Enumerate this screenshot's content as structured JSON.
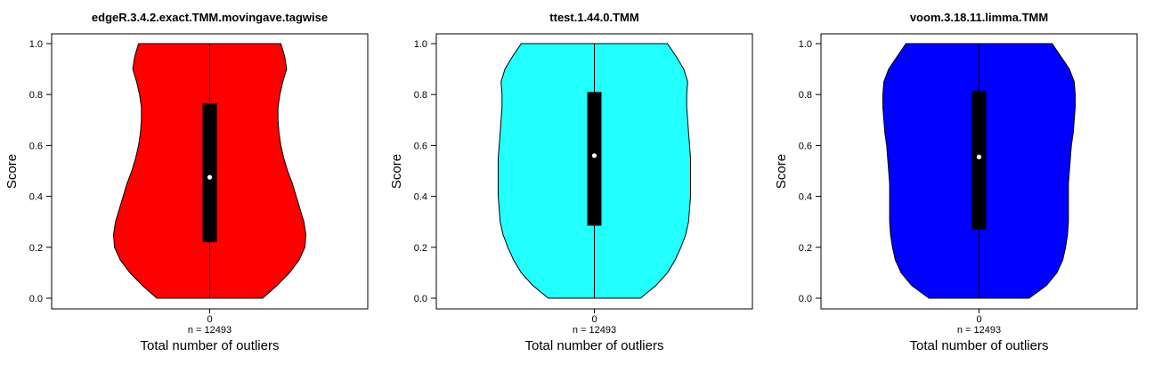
{
  "chart_data": [
    {
      "type": "violin",
      "title": "edgeR.3.4.2.exact.TMM.movingave.tagwise",
      "xlabel": "Total number of outliers",
      "ylabel": "Score",
      "ylim": [
        0,
        1
      ],
      "yticks": [
        "0.0",
        "0.2",
        "0.4",
        "0.6",
        "0.8",
        "1.0"
      ],
      "categories": [
        "0"
      ],
      "n_label": "n = 12493",
      "fill": "#ff0000",
      "box": {
        "q1": 0.22,
        "median": 0.475,
        "q3": 0.765
      },
      "profile": [
        [
          0.0,
          0.55
        ],
        [
          0.05,
          0.7
        ],
        [
          0.1,
          0.83
        ],
        [
          0.15,
          0.93
        ],
        [
          0.2,
          0.99
        ],
        [
          0.25,
          1.0
        ],
        [
          0.3,
          0.98
        ],
        [
          0.35,
          0.94
        ],
        [
          0.4,
          0.9
        ],
        [
          0.45,
          0.86
        ],
        [
          0.5,
          0.81
        ],
        [
          0.55,
          0.77
        ],
        [
          0.6,
          0.74
        ],
        [
          0.65,
          0.72
        ],
        [
          0.7,
          0.71
        ],
        [
          0.75,
          0.71
        ],
        [
          0.8,
          0.73
        ],
        [
          0.85,
          0.76
        ],
        [
          0.9,
          0.8
        ],
        [
          0.95,
          0.78
        ],
        [
          1.0,
          0.74
        ]
      ]
    },
    {
      "type": "violin",
      "title": "ttest.1.44.0.TMM",
      "xlabel": "Total number of outliers",
      "ylabel": "Score",
      "ylim": [
        0,
        1
      ],
      "yticks": [
        "0.0",
        "0.2",
        "0.4",
        "0.6",
        "0.8",
        "1.0"
      ],
      "categories": [
        "0"
      ],
      "n_label": "n = 12493",
      "fill": "#22ffff",
      "box": {
        "q1": 0.285,
        "median": 0.56,
        "q3": 0.81
      },
      "profile": [
        [
          0.0,
          0.48
        ],
        [
          0.05,
          0.64
        ],
        [
          0.1,
          0.76
        ],
        [
          0.15,
          0.84
        ],
        [
          0.2,
          0.9
        ],
        [
          0.25,
          0.95
        ],
        [
          0.3,
          0.98
        ],
        [
          0.35,
          0.99
        ],
        [
          0.4,
          1.0
        ],
        [
          0.45,
          1.0
        ],
        [
          0.5,
          1.0
        ],
        [
          0.55,
          1.0
        ],
        [
          0.6,
          0.99
        ],
        [
          0.65,
          0.98
        ],
        [
          0.7,
          0.97
        ],
        [
          0.75,
          0.96
        ],
        [
          0.8,
          0.96
        ],
        [
          0.85,
          0.97
        ],
        [
          0.9,
          0.93
        ],
        [
          0.95,
          0.85
        ],
        [
          1.0,
          0.76
        ]
      ]
    },
    {
      "type": "violin",
      "title": "voom.3.18.11.limma.TMM",
      "xlabel": "Total number of outliers",
      "ylabel": "Score",
      "ylim": [
        0,
        1
      ],
      "yticks": [
        "0.0",
        "0.2",
        "0.4",
        "0.6",
        "0.8",
        "1.0"
      ],
      "categories": [
        "0"
      ],
      "n_label": "n = 12493",
      "fill": "#0000ff",
      "box": {
        "q1": 0.27,
        "median": 0.555,
        "q3": 0.815
      },
      "profile": [
        [
          0.0,
          0.52
        ],
        [
          0.05,
          0.7
        ],
        [
          0.1,
          0.81
        ],
        [
          0.15,
          0.87
        ],
        [
          0.2,
          0.9
        ],
        [
          0.25,
          0.92
        ],
        [
          0.3,
          0.93
        ],
        [
          0.35,
          0.93
        ],
        [
          0.4,
          0.93
        ],
        [
          0.45,
          0.93
        ],
        [
          0.5,
          0.94
        ],
        [
          0.55,
          0.95
        ],
        [
          0.6,
          0.96
        ],
        [
          0.65,
          0.98
        ],
        [
          0.7,
          0.99
        ],
        [
          0.75,
          1.0
        ],
        [
          0.8,
          1.0
        ],
        [
          0.85,
          0.99
        ],
        [
          0.9,
          0.94
        ],
        [
          0.95,
          0.85
        ],
        [
          1.0,
          0.76
        ]
      ]
    }
  ]
}
